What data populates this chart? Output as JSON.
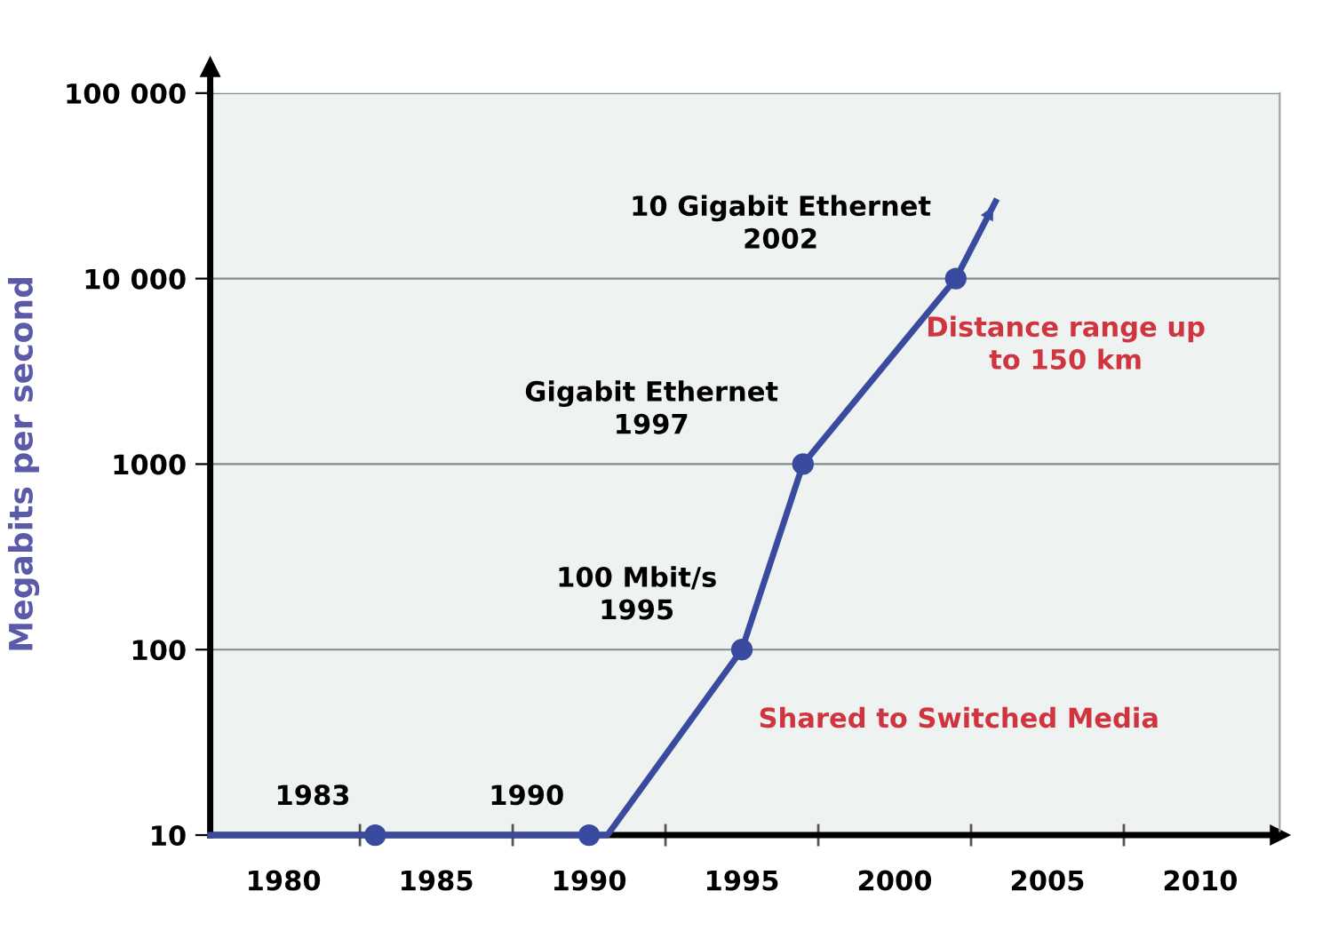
{
  "chart_data": {
    "type": "line",
    "ylabel": "Megabits per second",
    "log": "y",
    "xlim": [
      1977.6,
      2012.6
    ],
    "ylim": [
      10,
      100000
    ],
    "xticks": [
      {
        "value": 1980,
        "label": "1980"
      },
      {
        "value": 1982.5,
        "label": null
      },
      {
        "value": 1985,
        "label": "1985"
      },
      {
        "value": 1987.5,
        "label": null
      },
      {
        "value": 1990,
        "label": "1990"
      },
      {
        "value": 1992.5,
        "label": null
      },
      {
        "value": 1995,
        "label": "1995"
      },
      {
        "value": 1997.5,
        "label": null
      },
      {
        "value": 2000,
        "label": "2000"
      },
      {
        "value": 2002.5,
        "label": null
      },
      {
        "value": 2005,
        "label": "2005"
      },
      {
        "value": 2007.5,
        "label": null
      },
      {
        "value": 2010,
        "label": "2010"
      }
    ],
    "yticks": [
      10,
      100,
      1000,
      {
        "value": 10000,
        "label": "10 000"
      },
      {
        "value": 100000,
        "label": "100 000"
      }
    ],
    "grid": "y",
    "series": [
      {
        "color": "#3a4a9e",
        "marker": "none",
        "x": [
          1977.6,
          1983,
          1990,
          1990.6,
          1995,
          1997,
          2002,
          2003.3
        ],
        "values": [
          10,
          10,
          10,
          10,
          100,
          1000,
          10000,
          26000
        ]
      },
      {
        "type": "scatter",
        "color": "#3a4a9e",
        "marker": "circle",
        "x": [
          1983,
          1990,
          1995,
          1997,
          2002
        ],
        "values": [
          10,
          10,
          100,
          1000,
          10000
        ]
      }
    ],
    "annotations": [
      {
        "text": "1983",
        "x": 1983,
        "y": 10
      },
      {
        "text": "1990",
        "x": 1990,
        "y": 10
      },
      {
        "text": "100 Mbit/s\n1995",
        "x": 1995,
        "y": 100
      },
      {
        "text": "Gigabit Ethernet\n1997",
        "x": 1997,
        "y": 1000
      },
      {
        "text": "10 Gigabit Ethernet\n2002",
        "x": 2002,
        "y": 10000
      },
      "Distance range up\nto 150 km",
      "Shared to Switched Media"
    ]
  }
}
